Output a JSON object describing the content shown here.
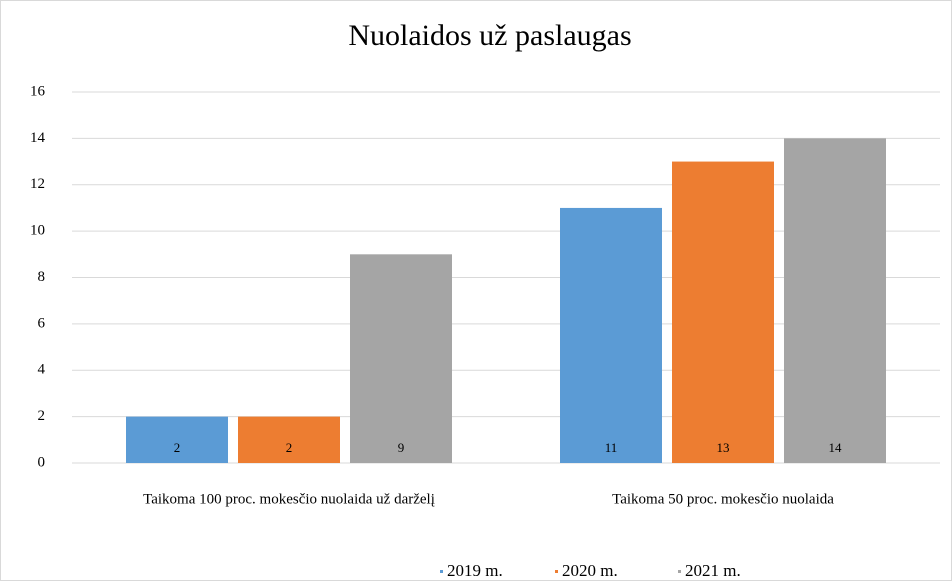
{
  "chart_data": {
    "type": "bar",
    "title": "Nuolaidos už paslaugas",
    "categories": [
      "Taikoma 100 proc. mokesčio nuolaida už darželį",
      "Taikoma 50 proc. mokesčio nuolaida"
    ],
    "series": [
      {
        "name": "2019 m.",
        "color": "#5b9bd5",
        "values": [
          2,
          11
        ]
      },
      {
        "name": "2020 m.",
        "color": "#ed7d31",
        "values": [
          2,
          13
        ]
      },
      {
        "name": "2021 m.",
        "color": "#a5a5a5",
        "values": [
          9,
          14
        ]
      }
    ],
    "ylim": [
      0,
      16
    ],
    "yticks": [
      0,
      2,
      4,
      6,
      8,
      10,
      12,
      14,
      16
    ],
    "grid": true,
    "legend": "bottom"
  }
}
